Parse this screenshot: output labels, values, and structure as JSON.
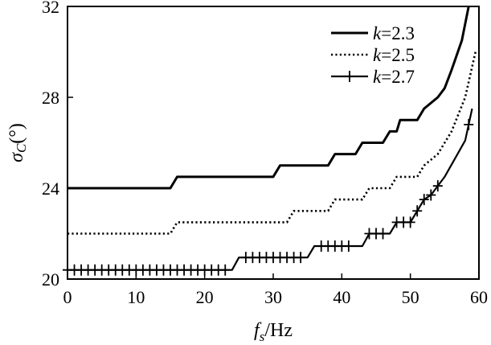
{
  "chart_data": {
    "type": "line",
    "xlabel": "f_s/Hz",
    "xlabel_parts": {
      "symbol": "f",
      "subscript": "s",
      "unit": "/Hz"
    },
    "ylabel": "σ_C(°)",
    "ylabel_parts": {
      "symbol": "σ",
      "subscript": "C",
      "unit": "(°)"
    },
    "xlim": [
      0,
      60
    ],
    "ylim": [
      20,
      32
    ],
    "xticks": [
      0,
      10,
      20,
      30,
      40,
      50,
      60
    ],
    "yticks": [
      20,
      24,
      28,
      32
    ],
    "grid": false,
    "legend_position": "top-right",
    "series": [
      {
        "name": "k=2.3",
        "name_var": "k",
        "name_value": "=2.3",
        "style": "solid",
        "points": [
          [
            0,
            24
          ],
          [
            15,
            24
          ],
          [
            16,
            24.5
          ],
          [
            30,
            24.5
          ],
          [
            31,
            25
          ],
          [
            38,
            25
          ],
          [
            39,
            25.5
          ],
          [
            42,
            25.5
          ],
          [
            43,
            26
          ],
          [
            46,
            26
          ],
          [
            47,
            26.5
          ],
          [
            48,
            26.5
          ],
          [
            48.5,
            27
          ],
          [
            51,
            27
          ],
          [
            52,
            27.5
          ],
          [
            54,
            28
          ],
          [
            55,
            28.4
          ],
          [
            56,
            29.2
          ],
          [
            57.5,
            30.5
          ],
          [
            58.5,
            32
          ]
        ]
      },
      {
        "name": "k=2.5",
        "name_var": "k",
        "name_value": "=2.5",
        "style": "dotted",
        "points": [
          [
            0,
            22
          ],
          [
            15,
            22
          ],
          [
            16,
            22.5
          ],
          [
            32,
            22.5
          ],
          [
            33,
            23
          ],
          [
            38,
            23
          ],
          [
            39,
            23.5
          ],
          [
            43,
            23.5
          ],
          [
            44,
            24
          ],
          [
            47,
            24
          ],
          [
            48,
            24.5
          ],
          [
            51,
            24.5
          ],
          [
            52,
            25
          ],
          [
            54,
            25.5
          ],
          [
            56,
            26.5
          ],
          [
            58,
            28
          ],
          [
            59.5,
            30
          ]
        ]
      },
      {
        "name": "k=2.7",
        "name_var": "k",
        "name_value": "=2.7",
        "style": "solid-plus",
        "points": [
          [
            0,
            20.4
          ],
          [
            24,
            20.4
          ],
          [
            25,
            20.95
          ],
          [
            35,
            20.95
          ],
          [
            36,
            21.45
          ],
          [
            43,
            21.45
          ],
          [
            44,
            22
          ],
          [
            47,
            22
          ],
          [
            48,
            22.5
          ],
          [
            50,
            22.5
          ],
          [
            51,
            23
          ],
          [
            52,
            23.5
          ],
          [
            53,
            23.7
          ],
          [
            55,
            24.5
          ],
          [
            58,
            26.1
          ],
          [
            59,
            27.5
          ]
        ],
        "markers_x": [
          0,
          1,
          2,
          3,
          4,
          5,
          6,
          7,
          8,
          9,
          10,
          11,
          12,
          13,
          14,
          15,
          16,
          17,
          18,
          19,
          20,
          21,
          22,
          23,
          26,
          27,
          28,
          29,
          30,
          31,
          32,
          33,
          34,
          37,
          38,
          39,
          40,
          41,
          44,
          45,
          46,
          48,
          49,
          50,
          51,
          52,
          53,
          54,
          58.5
        ]
      }
    ]
  }
}
